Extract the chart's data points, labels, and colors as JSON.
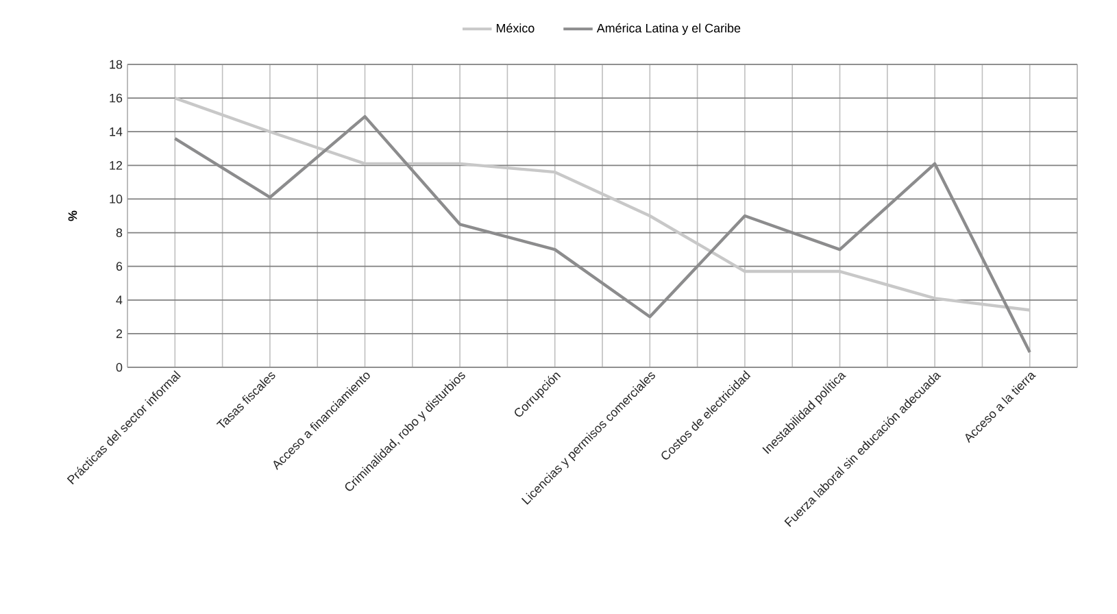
{
  "chart_data": {
    "type": "line",
    "ylabel": "%",
    "categories": [
      "Prácticas del sector informal",
      "Tasas fiscales",
      "Acceso a financiamiento",
      "Criminalidad, robo y disturbios",
      "Corrupción",
      "Licencias y permisos comerciales",
      "Costos de electricidad",
      "Inestabilidad política",
      "Fuerza laboral sin educación adecuada",
      "Acceso a la tierra"
    ],
    "series": [
      {
        "name": "México",
        "color": "#c8c8c8",
        "values": [
          16,
          14,
          12.1,
          12.1,
          11.6,
          9,
          5.7,
          5.7,
          4.1,
          3.4
        ]
      },
      {
        "name": "América Latina y el Caribe",
        "color": "#8c8c8d",
        "values": [
          13.6,
          10.1,
          14.9,
          8.5,
          7,
          3,
          9,
          7,
          12.1,
          0.9
        ]
      }
    ],
    "ylim": [
      0,
      18
    ],
    "yticks": [
      0,
      2,
      4,
      6,
      8,
      10,
      12,
      14,
      16,
      18
    ],
    "grid": true,
    "legend": "top",
    "marker": "none",
    "line_style": "solid"
  }
}
